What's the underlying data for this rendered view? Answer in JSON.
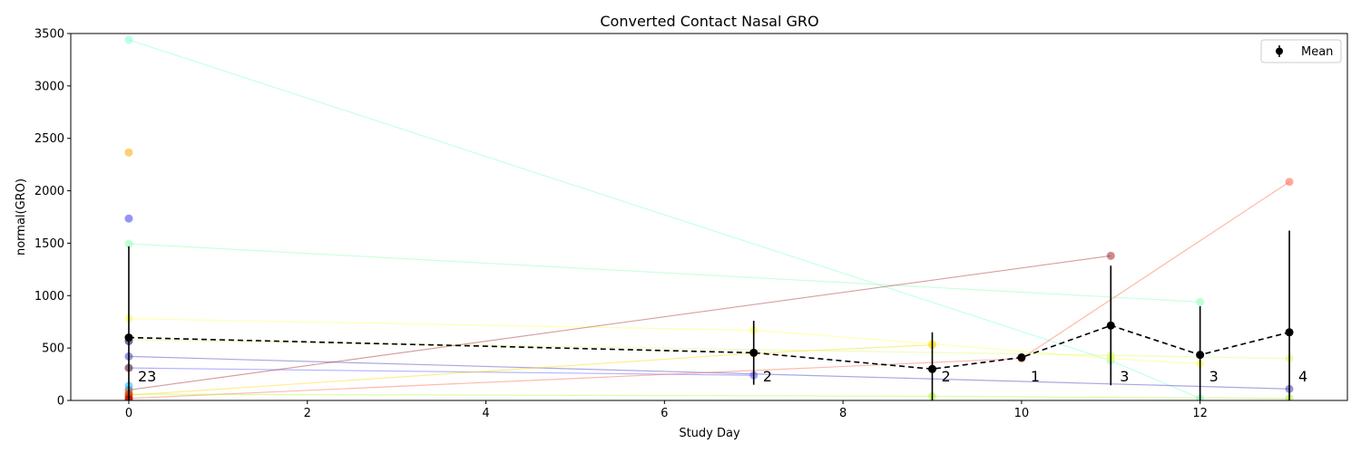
{
  "chart_data": {
    "type": "line",
    "title": "Converted Contact Nasal GRO",
    "xlabel": "Study Day",
    "ylabel": "normal(GRO)",
    "xlim": [
      -0.65,
      13.65
    ],
    "ylim": [
      0,
      3500
    ],
    "xticks": [
      0,
      2,
      4,
      6,
      8,
      10,
      12
    ],
    "yticks": [
      0,
      500,
      1000,
      1500,
      2000,
      2500,
      3000,
      3500
    ],
    "grid": false,
    "legend": {
      "position": "top-right",
      "entries": [
        "Mean"
      ]
    },
    "subjects": [
      {
        "color": "#7fffd4",
        "points": [
          [
            0,
            3440
          ],
          [
            11,
            380
          ],
          [
            12,
            20
          ]
        ]
      },
      {
        "color": "#8cffb5",
        "points": [
          [
            0,
            1495
          ],
          [
            12,
            940
          ]
        ]
      },
      {
        "color": "#ffa500",
        "points": [
          [
            0,
            2365
          ]
        ]
      },
      {
        "color": "#3c3cf0",
        "points": [
          [
            0,
            1735
          ]
        ]
      },
      {
        "color": "#ffff55",
        "points": [
          [
            0,
            780
          ],
          [
            7,
            670
          ],
          [
            9,
            540
          ],
          [
            11,
            400
          ],
          [
            12,
            350
          ]
        ]
      },
      {
        "color": "#3d3db8",
        "points": [
          [
            0,
            420
          ],
          [
            13,
            110
          ]
        ]
      },
      {
        "color": "#5555ff",
        "points": [
          [
            0,
            310
          ],
          [
            7,
            240
          ]
        ]
      },
      {
        "color": "#ffd700",
        "points": [
          [
            0,
            50
          ],
          [
            7,
            450
          ],
          [
            9,
            530
          ]
        ]
      },
      {
        "color": "#d8ff66",
        "points": [
          [
            0,
            580
          ],
          [
            11,
            430
          ],
          [
            13,
            400
          ]
        ]
      },
      {
        "color": "#a52a2a",
        "points": [
          [
            0,
            100
          ],
          [
            11,
            1380
          ]
        ]
      },
      {
        "color": "#ff6347",
        "points": [
          [
            0,
            20
          ],
          [
            10,
            400
          ],
          [
            13,
            2085
          ]
        ]
      },
      {
        "color": "#00bfff",
        "points": [
          [
            0,
            140
          ]
        ]
      },
      {
        "color": "#8b4513",
        "points": [
          [
            0,
            310
          ]
        ]
      },
      {
        "color": "#adff2f",
        "points": [
          [
            0,
            60
          ],
          [
            9,
            40
          ],
          [
            13,
            20
          ]
        ]
      },
      {
        "color": "#cc0000",
        "points": [
          [
            0,
            60
          ]
        ]
      },
      {
        "color": "#00008b",
        "points": [
          [
            0,
            565
          ]
        ]
      },
      {
        "color": "#ff0000",
        "points": [
          [
            0,
            30
          ]
        ]
      },
      {
        "color": "#8b0000",
        "points": [
          [
            0,
            10
          ]
        ]
      }
    ],
    "mean": {
      "name": "Mean",
      "points": [
        {
          "x": 0,
          "y": 600,
          "lo": 0,
          "hi": 1470,
          "n": "23"
        },
        {
          "x": 7,
          "y": 455,
          "lo": 150,
          "hi": 760,
          "n": "2"
        },
        {
          "x": 9,
          "y": 300,
          "lo": 0,
          "hi": 650,
          "n": "2"
        },
        {
          "x": 10,
          "y": 410,
          "lo": 410,
          "hi": 410,
          "n": "1"
        },
        {
          "x": 11,
          "y": 715,
          "lo": 145,
          "hi": 1285,
          "n": "3"
        },
        {
          "x": 12,
          "y": 435,
          "lo": 0,
          "hi": 900,
          "n": "3"
        },
        {
          "x": 13,
          "y": 650,
          "lo": 0,
          "hi": 1620,
          "n": "4"
        }
      ]
    }
  }
}
